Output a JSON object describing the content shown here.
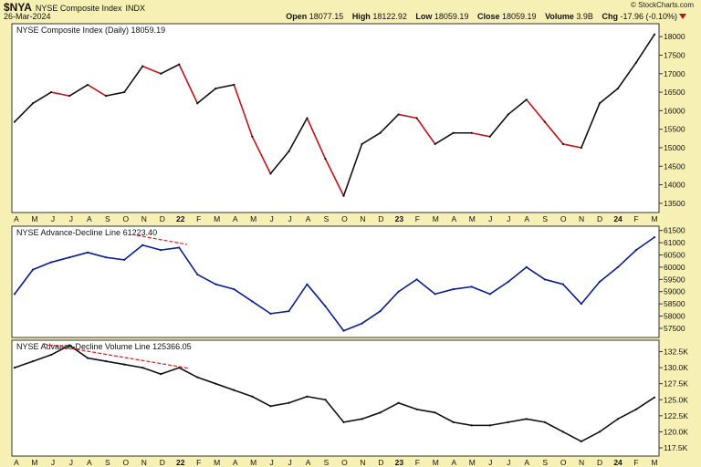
{
  "header": {
    "symbol": "$NYA",
    "name": "NYSE Composite Index",
    "exchange": "INDX",
    "date": "26-Mar-2024",
    "copyright": "© StockCharts.com",
    "open_label": "Open",
    "open": "18077.15",
    "high_label": "High",
    "high": "18122.92",
    "low_label": "Low",
    "low": "18059.19",
    "close_label": "Close",
    "close": "18059.19",
    "volume_label": "Volume",
    "volume": "3.9B",
    "chg_label": "Chg",
    "chg": "-17.96 (-0.10%)"
  },
  "colors": {
    "up": "#111111",
    "down": "#c0141b",
    "ad_line": "#0a1f8f",
    "annotation": "#e02020",
    "background": "#f7f0b4",
    "panel": "#ffffff"
  },
  "x_axis": [
    "A",
    "M",
    "J",
    "J",
    "A",
    "S",
    "O",
    "N",
    "D",
    "22",
    "F",
    "M",
    "A",
    "M",
    "J",
    "J",
    "A",
    "S",
    "O",
    "N",
    "D",
    "23",
    "F",
    "M",
    "A",
    "M",
    "J",
    "J",
    "A",
    "S",
    "O",
    "N",
    "D",
    "24",
    "F",
    "M"
  ],
  "chart_data": [
    {
      "type": "line",
      "title": "NYSE Composite Index (Daily) 18059.19",
      "x": [
        "2021-04",
        "2021-05",
        "2021-06",
        "2021-07",
        "2021-08",
        "2021-09",
        "2021-10",
        "2021-11",
        "2021-12",
        "2022-01",
        "2022-02",
        "2022-03",
        "2022-04",
        "2022-05",
        "2022-06",
        "2022-07",
        "2022-08",
        "2022-09",
        "2022-10",
        "2022-11",
        "2022-12",
        "2023-01",
        "2023-02",
        "2023-03",
        "2023-04",
        "2023-05",
        "2023-06",
        "2023-07",
        "2023-08",
        "2023-09",
        "2023-10",
        "2023-11",
        "2023-12",
        "2024-01",
        "2024-02",
        "2024-03"
      ],
      "series": [
        {
          "values": [
            15700,
            16200,
            16500,
            16400,
            16700,
            16400,
            16500,
            17200,
            17000,
            17250,
            16200,
            16600,
            16700,
            15300,
            14300,
            14900,
            15800,
            14700,
            13700,
            15100,
            15400,
            15900,
            15800,
            15100,
            15400,
            15400,
            15300,
            15900,
            16300,
            15700,
            15100,
            15000,
            16200,
            16600,
            17300,
            18059.19
          ]
        }
      ],
      "ylim": [
        13300,
        18300
      ],
      "yticks": [
        13500,
        14000,
        14500,
        15000,
        15500,
        16000,
        16500,
        17000,
        17500,
        18000
      ],
      "ytick_labels": [
        "13500",
        "14000",
        "14500",
        "15000",
        "15500",
        "16000",
        "16500",
        "17000",
        "17500",
        "18000"
      ]
    },
    {
      "type": "line",
      "title": "NYSE Advance-Decline Line 61223.40",
      "x": [
        "2021-04",
        "2021-05",
        "2021-06",
        "2021-07",
        "2021-08",
        "2021-09",
        "2021-10",
        "2021-11",
        "2021-12",
        "2022-01",
        "2022-02",
        "2022-03",
        "2022-04",
        "2022-05",
        "2022-06",
        "2022-07",
        "2022-08",
        "2022-09",
        "2022-10",
        "2022-11",
        "2022-12",
        "2023-01",
        "2023-02",
        "2023-03",
        "2023-04",
        "2023-05",
        "2023-06",
        "2023-07",
        "2023-08",
        "2023-09",
        "2023-10",
        "2023-11",
        "2023-12",
        "2024-01",
        "2024-02",
        "2024-03"
      ],
      "series": [
        {
          "values": [
            58900,
            59900,
            60200,
            60400,
            60600,
            60400,
            60300,
            60900,
            60700,
            60800,
            59700,
            59300,
            59100,
            58600,
            58100,
            58200,
            59300,
            58400,
            57400,
            57700,
            58200,
            59000,
            59500,
            58900,
            59100,
            59200,
            58900,
            59400,
            60000,
            59500,
            59300,
            58500,
            59400,
            60000,
            60700,
            61223.4
          ]
        }
      ],
      "ylim": [
        57200,
        61600
      ],
      "yticks": [
        57500,
        58000,
        58500,
        59000,
        59500,
        60000,
        60500,
        61000,
        61500
      ],
      "ytick_labels": [
        "57500",
        "58000",
        "58500",
        "59000",
        "59500",
        "60000",
        "60500",
        "61000",
        "61500"
      ]
    },
    {
      "type": "line",
      "title": "NYSE Advance-Decline Volume Line 125366.05",
      "x": [
        "2021-04",
        "2021-05",
        "2021-06",
        "2021-07",
        "2021-08",
        "2021-09",
        "2021-10",
        "2021-11",
        "2021-12",
        "2022-01",
        "2022-02",
        "2022-03",
        "2022-04",
        "2022-05",
        "2022-06",
        "2022-07",
        "2022-08",
        "2022-09",
        "2022-10",
        "2022-11",
        "2022-12",
        "2023-01",
        "2023-02",
        "2023-03",
        "2023-04",
        "2023-05",
        "2023-06",
        "2023-07",
        "2023-08",
        "2023-09",
        "2023-10",
        "2023-11",
        "2023-12",
        "2024-01",
        "2024-02",
        "2024-03"
      ],
      "series": [
        {
          "values": [
            130000,
            131000,
            132000,
            133500,
            131500,
            131000,
            130500,
            130000,
            129000,
            130000,
            128500,
            127500,
            126500,
            125500,
            124000,
            124500,
            125500,
            125000,
            121500,
            122000,
            123000,
            124500,
            123500,
            123000,
            121500,
            121000,
            121000,
            121500,
            122000,
            121500,
            120000,
            118500,
            120000,
            122000,
            123500,
            125366.05
          ]
        }
      ],
      "ylim": [
        116500,
        134000
      ],
      "yticks": [
        117500,
        120000,
        122500,
        125000,
        127500,
        130000,
        132500
      ],
      "ytick_labels": [
        "117.5K",
        "120.0K",
        "122.5K",
        "125.0K",
        "127.5K",
        "130.0K",
        "132.5K"
      ]
    }
  ]
}
